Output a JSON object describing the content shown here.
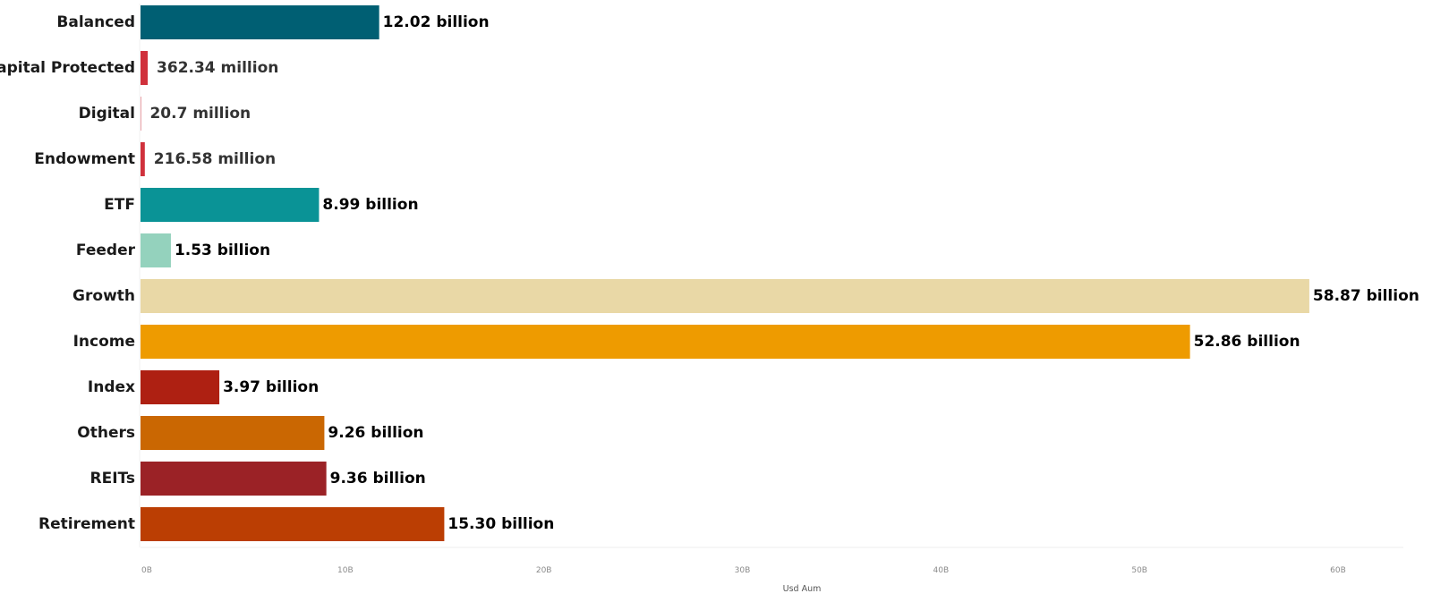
{
  "chart_data": {
    "type": "bar",
    "orientation": "horizontal",
    "categories": [
      "Balanced",
      "Capital Protected",
      "Digital",
      "Endowment",
      "ETF",
      "Feeder",
      "Growth",
      "Income",
      "Index",
      "Others",
      "REITs",
      "Retirement"
    ],
    "values": [
      12020000000,
      362340000,
      20700000,
      216580000,
      8990000000,
      1530000000,
      58870000000,
      52860000000,
      3970000000,
      9260000000,
      9360000000,
      15300000000
    ],
    "data_labels": [
      "12.02 billion",
      "362.34 million",
      "20.7 million",
      "216.58 million",
      "8.99 billion",
      "1.53 billion",
      "58.87 billion",
      "52.86 billion",
      "3.97 billion",
      "9.26 billion",
      "9.36 billion",
      "15.30 billion"
    ],
    "colors": [
      "#005f73",
      "#d0313c",
      "#d0313c",
      "#d0313c",
      "#0a9396",
      "#94d2bd",
      "#e9d8a6",
      "#ee9b00",
      "#ae2012",
      "#ca6702",
      "#9b2226",
      "#bb3e03"
    ],
    "x_ticks": [
      0,
      10000000000,
      20000000000,
      30000000000,
      40000000000,
      50000000000,
      60000000000
    ],
    "x_tick_labels": [
      "0B",
      "10B",
      "20B",
      "30B",
      "40B",
      "50B",
      "60B"
    ],
    "xlabel": "Usd Aum",
    "ylabel": "",
    "title": "",
    "xlim": [
      0,
      64000000000
    ],
    "grid": false,
    "legend": "none"
  }
}
